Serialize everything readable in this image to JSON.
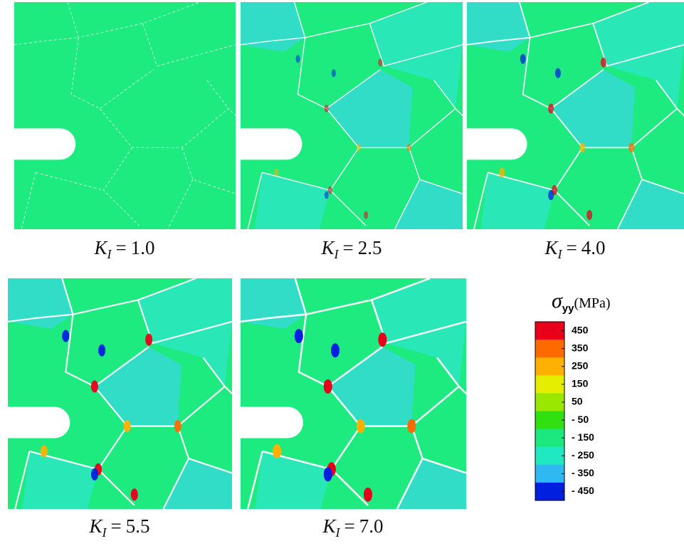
{
  "panels": [
    {
      "symbol": "K",
      "subscript": "I",
      "equals": "=",
      "value": "1.0"
    },
    {
      "symbol": "K",
      "subscript": "I",
      "equals": "=",
      "value": "2.5"
    },
    {
      "symbol": "K",
      "subscript": "I",
      "equals": "=",
      "value": "4.0"
    },
    {
      "symbol": "K",
      "subscript": "I",
      "equals": "=",
      "value": "5.5"
    },
    {
      "symbol": "K",
      "subscript": "I",
      "equals": "=",
      "value": "7.0"
    }
  ],
  "colorbar": {
    "symbol": "σ",
    "subscript": "yy",
    "unit": "(MPa)",
    "colors": [
      "#e8001a",
      "#ff6a00",
      "#ffb000",
      "#e6ee00",
      "#9ae800",
      "#30e010",
      "#1de880",
      "#20e8c0",
      "#30b8f0",
      "#0020e0"
    ],
    "ticks": [
      450,
      350,
      250,
      150,
      50,
      {
        "value": -50,
        "label": "- 50"
      },
      {
        "value": -150,
        "label": "- 150"
      },
      {
        "value": -250,
        "label": "- 250"
      },
      {
        "value": -350,
        "label": "- 350"
      },
      {
        "value": -450,
        "label": "- 450"
      }
    ]
  }
}
